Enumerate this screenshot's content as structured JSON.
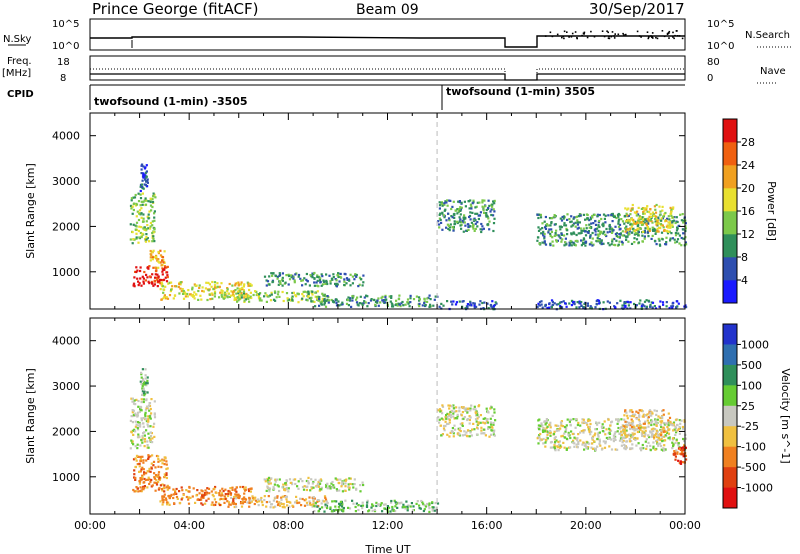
{
  "header": {
    "station": "Prince George (fitACF)",
    "beam": "Beam 09",
    "date": "30/Sep/2017"
  },
  "summary_panels": {
    "nsky_label": "N.Sky",
    "nsky_ticks": [
      "10^5",
      "10^0"
    ],
    "nsearch_label": "N.Search",
    "nsearch_ticks": [
      "10^5",
      "10^0"
    ],
    "freq_label": "Freq.",
    "freq_unit": "[MHz]",
    "freq_ticks": [
      "18",
      "8"
    ],
    "nave_label": "Nave",
    "nave_ticks": [
      "80",
      "0"
    ],
    "cpid_label": "CPID",
    "cpid_segments": [
      {
        "text": "twofsound (1-min) -3505",
        "start_hour": 0.0,
        "end_hour": 14.0
      },
      {
        "text": "twofsound (1-min) 3505",
        "start_hour": 14.0,
        "end_hour": 24.0
      }
    ]
  },
  "chart_data": [
    {
      "type": "heatmap",
      "title": "",
      "ylabel": "Slant Range [km]",
      "xlabel": "",
      "xlim": [
        0,
        24
      ],
      "ylim": [
        180,
        4500
      ],
      "y_ticks": [
        "1000",
        "2000",
        "3000",
        "4000"
      ],
      "colorbar_label": "Power [dB]",
      "colorbar_ticks": [
        "4",
        "8",
        "12",
        "16",
        "20",
        "24",
        "28"
      ],
      "colorbar_colors": [
        "#1a1aff",
        "#2e4fb0",
        "#2f8f5a",
        "#7cc94a",
        "#e8e030",
        "#f0a020",
        "#f06010",
        "#e01010"
      ],
      "data_gap_hours": [
        [
          16.5,
          17.8
        ]
      ],
      "marker_hour": 14.0,
      "echo_regions": [
        {
          "t0": 1.6,
          "t1": 2.6,
          "r0": 1650,
          "r1": 2750,
          "level": 3
        },
        {
          "t0": 2.0,
          "t1": 2.3,
          "r0": 2800,
          "r1": 3400,
          "level": 1
        },
        {
          "t0": 1.7,
          "t1": 3.1,
          "r0": 700,
          "r1": 1150,
          "level": 7
        },
        {
          "t0": 2.4,
          "t1": 3.0,
          "r0": 1100,
          "r1": 1500,
          "level": 5
        },
        {
          "t0": 2.8,
          "t1": 6.5,
          "r0": 400,
          "r1": 800,
          "level": 4
        },
        {
          "t0": 5.5,
          "t1": 9.5,
          "r0": 350,
          "r1": 600,
          "level": 3
        },
        {
          "t0": 7.0,
          "t1": 11.0,
          "r0": 700,
          "r1": 1000,
          "level": 2
        },
        {
          "t0": 9.0,
          "t1": 14.0,
          "r0": 250,
          "r1": 500,
          "level": 2
        },
        {
          "t0": 14.0,
          "t1": 16.3,
          "r0": 1900,
          "r1": 2600,
          "level": 2
        },
        {
          "t0": 14.0,
          "t1": 16.5,
          "r0": 200,
          "r1": 380,
          "level": 1
        },
        {
          "t0": 18.0,
          "t1": 24.0,
          "r0": 1600,
          "r1": 2300,
          "level": 2
        },
        {
          "t0": 21.5,
          "t1": 23.5,
          "r0": 1900,
          "r1": 2500,
          "level": 4
        },
        {
          "t0": 18.0,
          "t1": 24.0,
          "r0": 200,
          "r1": 400,
          "level": 1
        }
      ]
    },
    {
      "type": "heatmap",
      "title": "",
      "ylabel": "Slant Range [km]",
      "xlabel": "Time UT",
      "xlim": [
        0,
        24
      ],
      "ylim": [
        180,
        4500
      ],
      "x_ticks": [
        "00:00",
        "04:00",
        "08:00",
        "12:00",
        "16:00",
        "20:00",
        "00:00"
      ],
      "y_ticks": [
        "1000",
        "2000",
        "3000",
        "4000"
      ],
      "colorbar_label": "Velocity [m s^-1]",
      "colorbar_ticks": [
        "1000",
        "500",
        "100",
        "25",
        "-25",
        "-100",
        "-500",
        "-1000"
      ],
      "colorbar_colors": [
        "#2233cc",
        "#2f6fb0",
        "#2f8f5a",
        "#66cc33",
        "#c8c8c0",
        "#f0c040",
        "#f08020",
        "#e04010",
        "#e01010"
      ],
      "data_gap_hours": [
        [
          16.5,
          17.8
        ]
      ],
      "marker_hour": 14.0,
      "echo_regions": [
        {
          "t0": 1.6,
          "t1": 2.6,
          "r0": 1650,
          "r1": 2750,
          "level": 4
        },
        {
          "t0": 2.0,
          "t1": 2.3,
          "r0": 2800,
          "r1": 3400,
          "level": 3
        },
        {
          "t0": 1.7,
          "t1": 3.1,
          "r0": 700,
          "r1": 1500,
          "level": 6
        },
        {
          "t0": 2.8,
          "t1": 6.5,
          "r0": 400,
          "r1": 800,
          "level": 6
        },
        {
          "t0": 5.5,
          "t1": 9.5,
          "r0": 350,
          "r1": 600,
          "level": 5
        },
        {
          "t0": 7.0,
          "t1": 11.0,
          "r0": 700,
          "r1": 1000,
          "level": 4
        },
        {
          "t0": 9.0,
          "t1": 14.0,
          "r0": 250,
          "r1": 500,
          "level": 3
        },
        {
          "t0": 14.0,
          "t1": 16.3,
          "r0": 1900,
          "r1": 2600,
          "level": 4
        },
        {
          "t0": 18.0,
          "t1": 24.0,
          "r0": 1600,
          "r1": 2300,
          "level": 4
        },
        {
          "t0": 21.5,
          "t1": 23.5,
          "r0": 1900,
          "r1": 2500,
          "level": 5
        },
        {
          "t0": 23.5,
          "t1": 24.0,
          "r0": 1300,
          "r1": 1700,
          "level": 7
        }
      ]
    }
  ]
}
